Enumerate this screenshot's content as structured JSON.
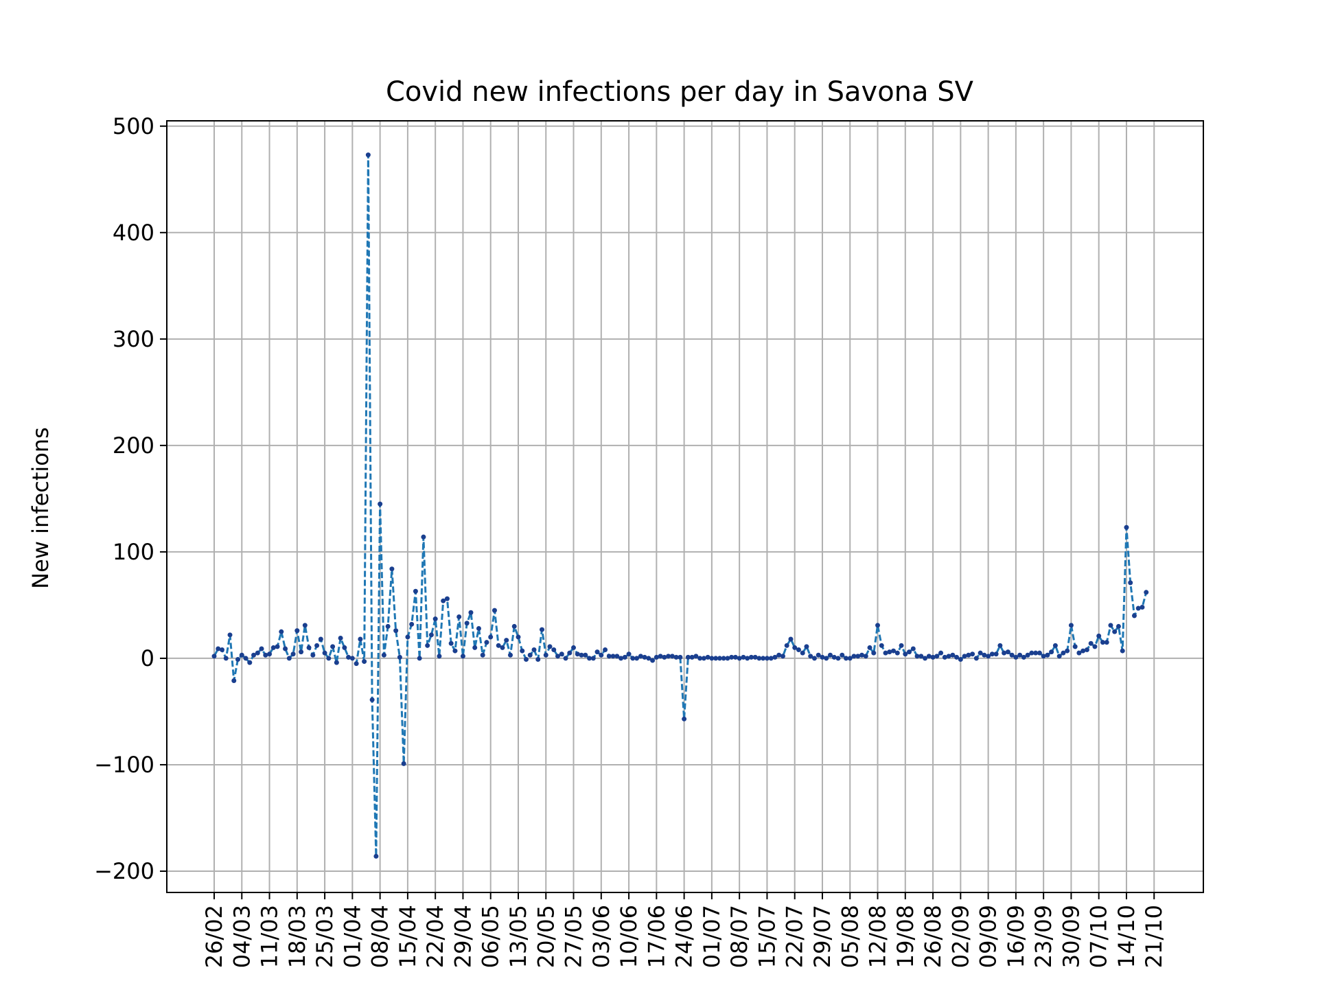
{
  "chart_data": {
    "type": "line",
    "title": "Covid new infections per day in Savona SV",
    "xlabel": "",
    "ylabel": "New infections",
    "ylim": [
      -220,
      505
    ],
    "yticks": [
      -200,
      -100,
      0,
      100,
      200,
      300,
      400,
      500
    ],
    "ytick_labels": [
      "−200",
      "−100",
      "0",
      "100",
      "200",
      "300",
      "400",
      "500"
    ],
    "xtick_labels": [
      "26/02",
      "04/03",
      "11/03",
      "18/03",
      "25/03",
      "01/04",
      "08/04",
      "15/04",
      "22/04",
      "29/04",
      "06/05",
      "13/05",
      "20/05",
      "27/05",
      "03/06",
      "10/06",
      "17/06",
      "24/06",
      "01/07",
      "08/07",
      "15/07",
      "22/07",
      "29/07",
      "05/08",
      "12/08",
      "19/08",
      "26/08",
      "02/09",
      "09/09",
      "16/09",
      "23/09",
      "30/09",
      "07/10",
      "14/10",
      "21/10"
    ],
    "grid": true,
    "line_style": "dashed",
    "marker": "dot",
    "colors": {
      "line": "#1f77b4",
      "marker": "#1a3f8f",
      "grid": "#b0b0b0"
    },
    "x_start": "26/02",
    "x_end": "22/10",
    "series": [
      {
        "values": [
          2,
          9,
          8,
          0,
          22,
          -21,
          -1,
          3,
          0,
          -4,
          3,
          5,
          9,
          3,
          4,
          10,
          11,
          25,
          9,
          0,
          4,
          26,
          6,
          31,
          10,
          3,
          12,
          18,
          5,
          0,
          11,
          -4,
          19,
          10,
          1,
          0,
          -5,
          18,
          -3,
          473,
          -39,
          -186,
          145,
          3,
          30,
          84,
          26,
          1,
          -99,
          20,
          32,
          63,
          0,
          114,
          12,
          22,
          37,
          2,
          54,
          56,
          14,
          7,
          39,
          2,
          33,
          43,
          10,
          28,
          3,
          15,
          20,
          45,
          12,
          10,
          17,
          3,
          30,
          20,
          7,
          -1,
          3,
          8,
          -1,
          27,
          3,
          11,
          8,
          2,
          4,
          0,
          5,
          10,
          4,
          3,
          3,
          0,
          0,
          6,
          3,
          8,
          2,
          2,
          2,
          0,
          1,
          4,
          0,
          0,
          2,
          1,
          0,
          -2,
          1,
          2,
          1,
          2,
          2,
          1,
          1,
          -57,
          1,
          1,
          2,
          0,
          0,
          1,
          0,
          0,
          0,
          0,
          0,
          1,
          1,
          0,
          1,
          0,
          1,
          1,
          0,
          0,
          0,
          0,
          1,
          3,
          2,
          12,
          18,
          10,
          8,
          5,
          11,
          2,
          0,
          3,
          1,
          0,
          3,
          1,
          0,
          3,
          0,
          0,
          2,
          2,
          3,
          2,
          10,
          5,
          31,
          12,
          5,
          6,
          7,
          5,
          12,
          4,
          6,
          9,
          2,
          2,
          0,
          2,
          1,
          2,
          5,
          1,
          2,
          3,
          1,
          -1,
          2,
          3,
          4,
          0,
          5,
          3,
          2,
          4,
          4,
          12,
          5,
          6,
          3,
          1,
          3,
          1,
          3,
          5,
          5,
          5,
          2,
          3,
          6,
          12,
          2,
          5,
          7,
          31,
          11,
          5,
          7,
          8,
          14,
          11,
          21,
          15,
          15,
          31,
          25,
          30,
          7,
          123,
          71,
          40,
          47,
          48,
          62
        ]
      }
    ]
  }
}
